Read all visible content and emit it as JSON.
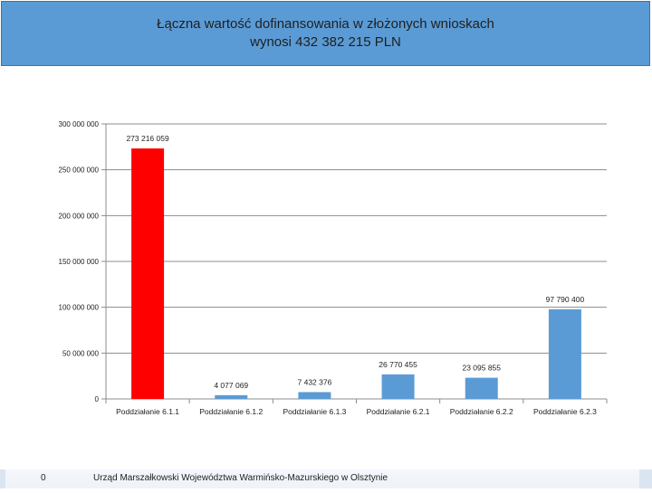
{
  "header": {
    "title_line1": "Łączna wartość dofinansowania w złożonych wnioskach",
    "title_line2": "wynosi 432 382 215 PLN"
  },
  "footer": {
    "page_number": "0",
    "text": "Urząd Marszałkowski Województwa Warmińsko-Mazurskiego w Olsztynie"
  },
  "colors": {
    "highlight": "#ff0000",
    "bar": "#5b9bd5",
    "banner": "#5b9bd5"
  },
  "chart_data": {
    "type": "bar",
    "title": "Łączna wartość dofinansowania w złożonych wnioskach wynosi 432 382 215 PLN",
    "categories": [
      "Poddziałanie 6.1.1",
      "Poddziałanie 6.1.2",
      "Poddziałanie 6.1.3",
      "Poddziałanie 6.2.1",
      "Poddziałanie 6.2.2",
      "Poddziałanie 6.2.3"
    ],
    "values": [
      273216059,
      4077069,
      7432376,
      26770455,
      23095855,
      97790400
    ],
    "value_labels": [
      "273 216 059",
      "4 077 069",
      "7 432 376",
      "26 770 455",
      "23 095 855",
      "97 790 400"
    ],
    "ylim": [
      0,
      300000000
    ],
    "yticks": [
      0,
      50000000,
      100000000,
      150000000,
      200000000,
      250000000,
      300000000
    ],
    "ytick_labels": [
      "0",
      "50 000 000",
      "100 000 000",
      "150 000 000",
      "200 000 000",
      "250 000 000",
      "300 000 000"
    ],
    "xlabel": "",
    "ylabel": "",
    "grid": true,
    "highlight_index": 0
  }
}
